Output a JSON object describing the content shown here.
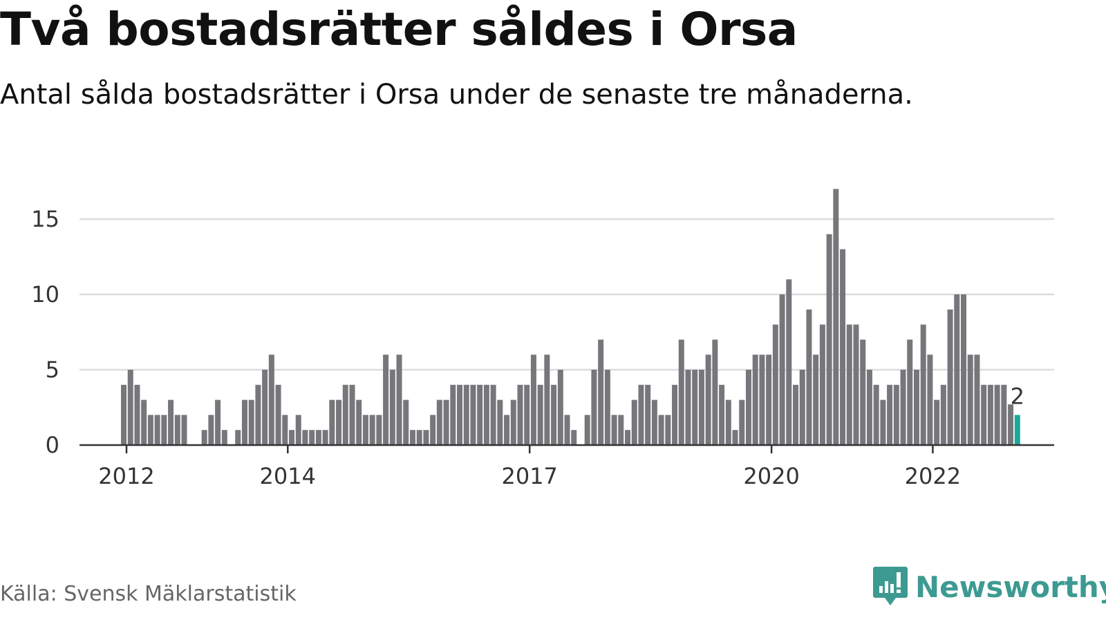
{
  "header": {
    "title": "Två bostadsrätter såldes i Orsa",
    "subtitle": "Antal sålda bostadsrätter i Orsa under de senaste tre månaderna."
  },
  "footer": {
    "source": "Källa: Svensk Mäklarstatistik",
    "brand": "Newsworthy"
  },
  "colors": {
    "bar": "#77767b",
    "highlight": "#1aa89a",
    "brand": "#3d9a92"
  },
  "chart_data": {
    "type": "bar",
    "title": "Två bostadsrätter såldes i Orsa",
    "subtitle": "Antal sålda bostadsrätter i Orsa under de senaste tre månaderna.",
    "x_start": "2012-01",
    "x_tick_labels": [
      {
        "label": "2012",
        "month": "2012-01"
      },
      {
        "label": "2014",
        "month": "2014-01"
      },
      {
        "label": "2017",
        "month": "2017-01"
      },
      {
        "label": "2020",
        "month": "2020-01"
      },
      {
        "label": "2022",
        "month": "2022-01"
      }
    ],
    "y_ticks": [
      0,
      5,
      10,
      15
    ],
    "ylim": [
      0,
      17
    ],
    "grid": true,
    "values": [
      4,
      5,
      4,
      3,
      2,
      2,
      2,
      3,
      2,
      2,
      0,
      0,
      1,
      2,
      3,
      1,
      0,
      1,
      3,
      3,
      4,
      5,
      6,
      4,
      2,
      1,
      2,
      1,
      1,
      1,
      1,
      3,
      3,
      4,
      4,
      3,
      2,
      2,
      2,
      6,
      5,
      6,
      3,
      1,
      1,
      1,
      2,
      3,
      3,
      4,
      4,
      4,
      4,
      4,
      4,
      4,
      3,
      2,
      3,
      4,
      4,
      6,
      4,
      6,
      4,
      5,
      2,
      1,
      0,
      2,
      5,
      7,
      5,
      2,
      2,
      1,
      3,
      4,
      4,
      3,
      2,
      2,
      4,
      7,
      5,
      5,
      5,
      6,
      7,
      4,
      3,
      1,
      3,
      5,
      6,
      6,
      6,
      8,
      10,
      11,
      4,
      5,
      9,
      6,
      8,
      14,
      17,
      13,
      8,
      8,
      7,
      5,
      4,
      3,
      4,
      4,
      5,
      7,
      5,
      8,
      6,
      3,
      4,
      9,
      10,
      10,
      6,
      6,
      4,
      4,
      4,
      4,
      2.7,
      2
    ],
    "highlight_label": "2"
  }
}
